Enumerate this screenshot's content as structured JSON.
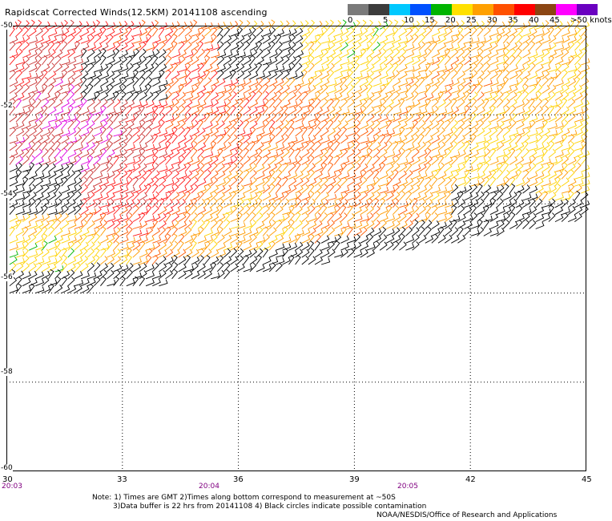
{
  "title": "Rapidscat Corrected Winds(12.5KM) 20141108 ascending",
  "legend": {
    "labels": [
      "0",
      "5",
      "10",
      "15",
      "20",
      "25",
      "30",
      "35",
      "40",
      "45",
      ">50 knots"
    ],
    "colors": [
      "#7a7a7a",
      "#3c3c3c",
      "#00c8ff",
      "#0050ff",
      "#00b400",
      "#ffe000",
      "#ffa000",
      "#ff5000",
      "#ff0000",
      "#8b4513",
      "#ff00ff",
      "#6a00c0"
    ]
  },
  "lat_labels": [
    "-50",
    "-52",
    "-54",
    "-56",
    "-58",
    "-60"
  ],
  "lon_labels": [
    "30",
    "33",
    "36",
    "39",
    "42",
    "45"
  ],
  "time_labels": [
    "20:03",
    "20:04",
    "20:05"
  ],
  "notes": [
    "Note: 1) Times are GMT 2)Times along bottom correspond to measurement at ~50S",
    "3)Data buffer is 22 hrs from 20141108 4) Black circles indicate possible contamination",
    "NOAA/NESDIS/Office of Research and Applications"
  ],
  "chart_data": {
    "type": "map",
    "xlim": [
      30,
      45
    ],
    "ylim": [
      -60,
      -50
    ],
    "units": "knots",
    "swath_lower_edge": [
      [
        30,
        -56.1
      ],
      [
        33,
        -55.9
      ],
      [
        36,
        -55.6
      ],
      [
        39,
        -55.2
      ],
      [
        42,
        -54.8
      ],
      [
        45,
        -54.3
      ]
    ],
    "speed_regions": [
      {
        "lon": 32.0,
        "lat": -52.8,
        "speed": 45
      },
      {
        "lon": 33.5,
        "lat": -53.5,
        "speed": 38
      },
      {
        "lon": 35.5,
        "lat": -52.0,
        "speed": 34
      },
      {
        "lon": 38.0,
        "lat": -53.0,
        "speed": 32
      },
      {
        "lon": 41.0,
        "lat": -51.5,
        "speed": 28
      },
      {
        "lon": 43.5,
        "lat": -53.0,
        "speed": 24
      },
      {
        "lon": 31.0,
        "lat": -55.5,
        "speed": 22
      },
      {
        "lon": 36.0,
        "lat": -54.5,
        "speed": 26
      },
      {
        "lon": 39.0,
        "lat": -50.5,
        "speed": 22
      }
    ],
    "contaminated_regions": [
      {
        "lon": 30.8,
        "lat": -53.8
      },
      {
        "lon": 33.0,
        "lat": -51.2
      },
      {
        "lon": 36.5,
        "lat": -50.7
      },
      {
        "lon": 42.5,
        "lat": -54.2
      }
    ]
  }
}
